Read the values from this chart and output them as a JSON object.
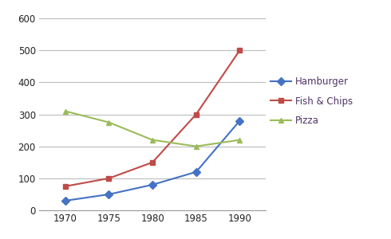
{
  "years": [
    1970,
    1975,
    1980,
    1985,
    1990
  ],
  "hamburger": [
    30,
    50,
    80,
    120,
    280
  ],
  "fish_chips": [
    75,
    100,
    150,
    300,
    500
  ],
  "pizza": [
    310,
    275,
    220,
    200,
    220
  ],
  "hamburger_color": "#4472C4",
  "fish_chips_color": "#BE4B48",
  "pizza_color": "#9BBB59",
  "hamburger_label": "Hamburger",
  "fish_chips_label": "Fish & Chips",
  "pizza_label": "Pizza",
  "xlim": [
    1967,
    1993
  ],
  "ylim": [
    0,
    620
  ],
  "yticks": [
    0,
    100,
    200,
    300,
    400,
    500,
    600
  ],
  "xticks": [
    1970,
    1975,
    1980,
    1985,
    1990
  ],
  "grid_color": "#BBBBBB",
  "background_color": "#FFFFFF",
  "legend_text_color": "#4F3465"
}
